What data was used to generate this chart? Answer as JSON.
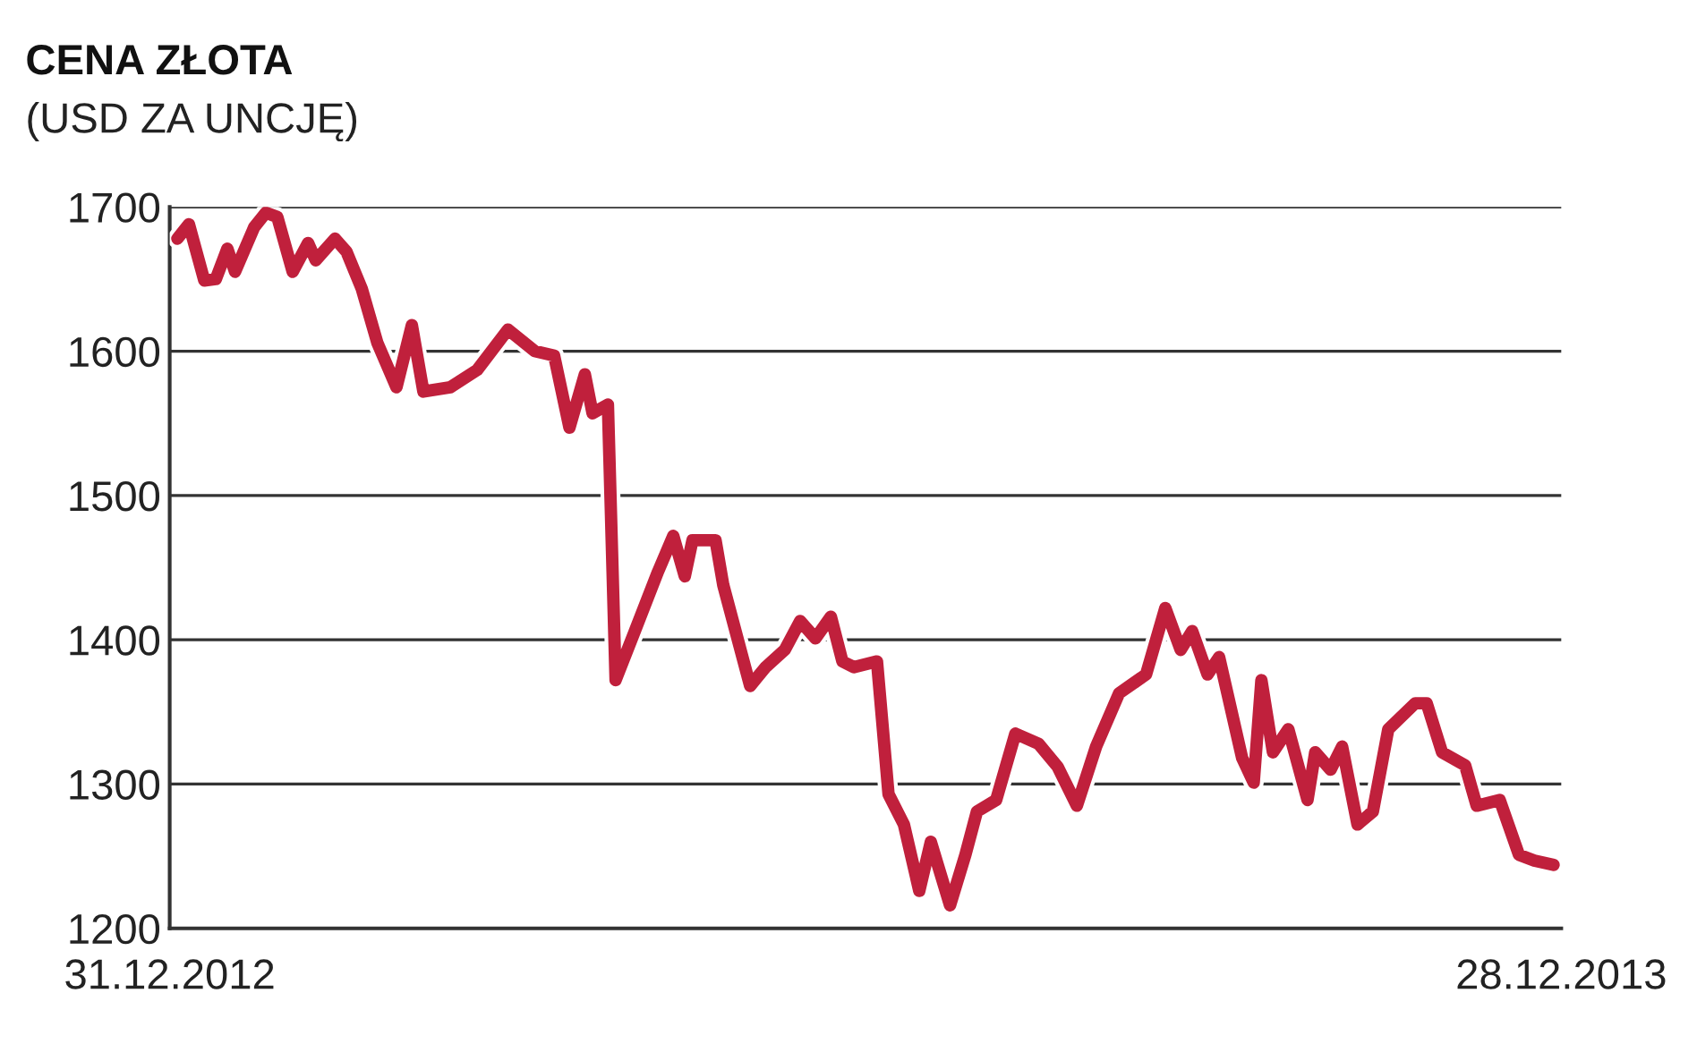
{
  "chart_data": {
    "type": "line",
    "title": "CENA ZŁOTA",
    "subtitle": "(USD ZA UNCJĘ)",
    "x": [
      "2013-01-02",
      "2013-01-05",
      "2013-01-09",
      "2013-01-12",
      "2013-01-15",
      "2013-01-17",
      "2013-01-22",
      "2013-01-25",
      "2013-01-28",
      "2013-02-01",
      "2013-02-05",
      "2013-02-07",
      "2013-02-12",
      "2013-02-15",
      "2013-02-19",
      "2013-02-23",
      "2013-02-28",
      "2013-03-04",
      "2013-03-07",
      "2013-03-14",
      "2013-03-21",
      "2013-03-29",
      "2013-04-05",
      "2013-04-10",
      "2013-04-14",
      "2013-04-18",
      "2013-04-20",
      "2013-04-24",
      "2013-04-26",
      "2013-05-01",
      "2013-05-07",
      "2013-05-11",
      "2013-05-14",
      "2013-05-16",
      "2013-05-22",
      "2013-05-24",
      "2013-05-31",
      "2013-06-04",
      "2013-06-09",
      "2013-06-13",
      "2013-06-17",
      "2013-06-21",
      "2013-06-24",
      "2013-06-27",
      "2013-07-03",
      "2013-07-06",
      "2013-07-10",
      "2013-07-14",
      "2013-07-17",
      "2013-07-22",
      "2013-07-26",
      "2013-07-29",
      "2013-08-03",
      "2013-08-08",
      "2013-08-14",
      "2013-08-19",
      "2013-08-24",
      "2013-08-29",
      "2013-09-04",
      "2013-09-11",
      "2013-09-16",
      "2013-09-20",
      "2013-09-23",
      "2013-09-27",
      "2013-09-30",
      "2013-10-06",
      "2013-10-09",
      "2013-10-11",
      "2013-10-14",
      "2013-10-18",
      "2013-10-23",
      "2013-10-25",
      "2013-10-29",
      "2013-11-01",
      "2013-11-05",
      "2013-11-09",
      "2013-11-13",
      "2013-11-20",
      "2013-11-23",
      "2013-11-27",
      "2013-12-03",
      "2013-12-06",
      "2013-12-12",
      "2013-12-17",
      "2013-12-21",
      "2013-12-26"
    ],
    "series": [
      {
        "color": "#c0203c",
        "values": [
          1678,
          1688,
          1649,
          1650,
          1671,
          1655,
          1686,
          1696,
          1693,
          1655,
          1675,
          1663,
          1678,
          1669,
          1643,
          1606,
          1575,
          1618,
          1572,
          1575,
          1587,
          1615,
          1600,
          1597,
          1547,
          1584,
          1557,
          1563,
          1372,
          1406,
          1447,
          1472,
          1444,
          1469,
          1469,
          1438,
          1368,
          1381,
          1393,
          1413,
          1401,
          1416,
          1385,
          1381,
          1385,
          1293,
          1272,
          1226,
          1260,
          1216,
          1251,
          1281,
          1289,
          1335,
          1328,
          1312,
          1285,
          1326,
          1363,
          1376,
          1422,
          1393,
          1406,
          1376,
          1388,
          1318,
          1301,
          1372,
          1322,
          1338,
          1289,
          1322,
          1310,
          1326,
          1272,
          1281,
          1338,
          1356,
          1356,
          1322,
          1313,
          1285,
          1289,
          1251,
          1247,
          1244
        ]
      }
    ],
    "xlim": [
      "2012-12-31",
      "2013-12-28"
    ],
    "xticks": [
      {
        "value": "2012-12-31",
        "label": "31.12.2012"
      },
      {
        "value": "2013-12-28",
        "label": "28.12.2013"
      }
    ],
    "ylim": [
      1200,
      1700
    ],
    "yticks": [
      1200,
      1300,
      1400,
      1500,
      1600,
      1700
    ],
    "grid": "y",
    "legend": false,
    "marker": "none",
    "line_style": "solid"
  }
}
